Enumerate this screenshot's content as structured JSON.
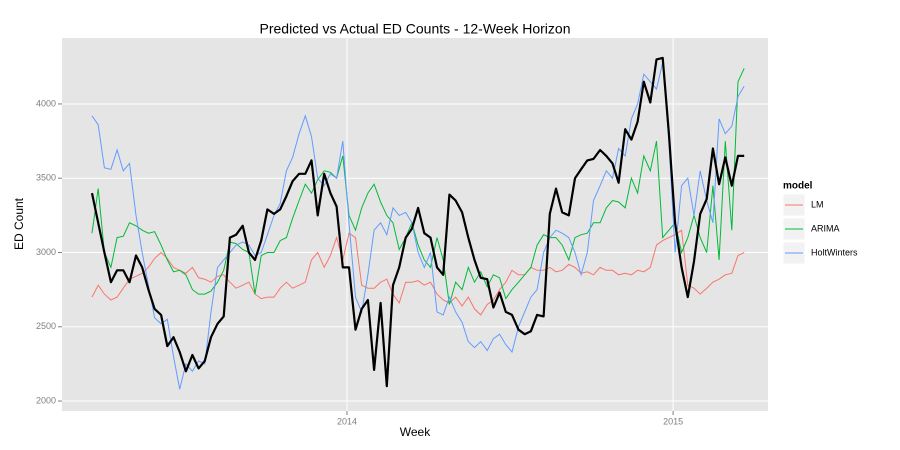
{
  "chart_data": {
    "type": "line",
    "title": "Predicted vs Actual ED Counts - 12-Week Horizon",
    "x_label": "Week",
    "y_label": "ED Count",
    "legend_title": "model",
    "legend": "right",
    "grid": true,
    "xlim": [
      2013.126,
      2015.291
    ],
    "xticks": [
      2014,
      2015
    ],
    "ylim": [
      1933,
      4444
    ],
    "yticks": [
      2000,
      2500,
      3000,
      3500,
      4000
    ],
    "x": [
      2013.218,
      2013.237,
      2013.256,
      2013.276,
      2013.295,
      2013.314,
      2013.333,
      2013.353,
      2013.372,
      2013.391,
      2013.41,
      2013.43,
      2013.449,
      2013.468,
      2013.487,
      2013.506,
      2013.526,
      2013.545,
      2013.564,
      2013.583,
      2013.603,
      2013.622,
      2013.641,
      2013.66,
      2013.68,
      2013.699,
      2013.718,
      2013.737,
      2013.756,
      2013.776,
      2013.795,
      2013.814,
      2013.833,
      2013.853,
      2013.872,
      2013.891,
      2013.91,
      2013.93,
      2013.949,
      2013.968,
      2013.987,
      2014.006,
      2014.026,
      2014.045,
      2014.064,
      2014.083,
      2014.103,
      2014.122,
      2014.141,
      2014.16,
      2014.18,
      2014.199,
      2014.218,
      2014.237,
      2014.256,
      2014.276,
      2014.295,
      2014.314,
      2014.333,
      2014.353,
      2014.372,
      2014.391,
      2014.41,
      2014.43,
      2014.449,
      2014.468,
      2014.487,
      2014.506,
      2014.526,
      2014.545,
      2014.564,
      2014.583,
      2014.603,
      2014.622,
      2014.641,
      2014.66,
      2014.68,
      2014.699,
      2014.718,
      2014.737,
      2014.756,
      2014.776,
      2014.795,
      2014.814,
      2014.833,
      2014.853,
      2014.872,
      2014.891,
      2014.91,
      2014.93,
      2014.949,
      2014.968,
      2014.987,
      2015.006,
      2015.026,
      2015.045,
      2015.064,
      2015.083,
      2015.103,
      2015.122,
      2015.141,
      2015.16,
      2015.18,
      2015.199,
      2015.218
    ],
    "series": [
      {
        "name": "LM",
        "color": "#F8766D",
        "values": [
          2700,
          2780,
          2720,
          2680,
          2700,
          2760,
          2820,
          2840,
          2860,
          2900,
          2960,
          3000,
          2960,
          2900,
          2880,
          2860,
          2900,
          2830,
          2820,
          2800,
          2840,
          2850,
          2800,
          2760,
          2780,
          2800,
          2720,
          2690,
          2700,
          2700,
          2760,
          2800,
          2760,
          2780,
          2800,
          2950,
          3000,
          2900,
          2980,
          3100,
          2950,
          3130,
          3100,
          2780,
          2760,
          2760,
          2800,
          2820,
          2720,
          2660,
          2800,
          2800,
          2810,
          2780,
          2800,
          2720,
          2680,
          2660,
          2700,
          2640,
          2700,
          2620,
          2580,
          2650,
          2680,
          2750,
          2800,
          2880,
          2850,
          2850,
          2900,
          2880,
          2880,
          2900,
          2870,
          2880,
          2920,
          2900,
          2860,
          2870,
          2850,
          2900,
          2880,
          2880,
          2850,
          2860,
          2850,
          2880,
          2870,
          2900,
          3050,
          3080,
          3100,
          3120,
          3150,
          2780,
          2760,
          2720,
          2760,
          2800,
          2820,
          2850,
          2860,
          2980,
          3000
        ]
      },
      {
        "name": "ARIMA",
        "color": "#00BA38",
        "values": [
          3130,
          3430,
          3000,
          2900,
          3100,
          3110,
          3200,
          3180,
          3150,
          3130,
          3140,
          3050,
          2950,
          2870,
          2880,
          2850,
          2750,
          2720,
          2720,
          2740,
          2800,
          2880,
          3070,
          3060,
          3020,
          3000,
          2720,
          2980,
          3000,
          3000,
          3080,
          3100,
          3230,
          3350,
          3460,
          3400,
          3490,
          3550,
          3540,
          3500,
          3650,
          3250,
          3150,
          3300,
          3400,
          3460,
          3340,
          3250,
          3200,
          3020,
          3100,
          3200,
          3050,
          2950,
          2900,
          3100,
          2950,
          2650,
          2800,
          2750,
          2900,
          2800,
          2870,
          2770,
          2850,
          2830,
          2690,
          2750,
          2800,
          2850,
          2900,
          3050,
          3120,
          3100,
          3100,
          3050,
          2950,
          3100,
          3120,
          3130,
          3200,
          3200,
          3300,
          3350,
          3340,
          3300,
          3500,
          3400,
          3650,
          3550,
          3750,
          3100,
          3150,
          3200,
          3000,
          3100,
          3250,
          3100,
          3000,
          3450,
          2950,
          3750,
          3150,
          4150,
          4240
        ]
      },
      {
        "name": "HoltWinters",
        "color": "#619CFF",
        "values": [
          3920,
          3860,
          3570,
          3560,
          3690,
          3550,
          3600,
          3250,
          3000,
          2780,
          2560,
          2520,
          2550,
          2300,
          2080,
          2250,
          2200,
          2270,
          2250,
          2600,
          2900,
          2950,
          3000,
          3050,
          3070,
          3050,
          2980,
          3000,
          3120,
          3250,
          3330,
          3550,
          3640,
          3800,
          3920,
          3780,
          3500,
          3450,
          3530,
          3500,
          3750,
          3200,
          2700,
          2600,
          2850,
          3150,
          3200,
          3120,
          3300,
          3250,
          3270,
          3200,
          3000,
          2900,
          3000,
          2600,
          2580,
          2700,
          2600,
          2530,
          2400,
          2360,
          2400,
          2340,
          2420,
          2450,
          2380,
          2330,
          2500,
          2600,
          2700,
          2750,
          3000,
          3100,
          3150,
          3130,
          3100,
          3000,
          2850,
          3000,
          3350,
          3450,
          3550,
          3500,
          3700,
          3650,
          3900,
          4000,
          4200,
          4150,
          4100,
          4280,
          3750,
          3000,
          3450,
          3500,
          3250,
          3550,
          3350,
          3200,
          3900,
          3800,
          3850,
          4050,
          4120
        ]
      }
    ],
    "actual": {
      "color": "#000000",
      "values": [
        3400,
        3200,
        3000,
        2800,
        2880,
        2880,
        2800,
        2980,
        2900,
        2750,
        2620,
        2580,
        2370,
        2430,
        2330,
        2200,
        2310,
        2220,
        2270,
        2430,
        2520,
        2570,
        3100,
        3120,
        3180,
        3000,
        2950,
        3080,
        3290,
        3260,
        3290,
        3380,
        3480,
        3530,
        3530,
        3620,
        3250,
        3530,
        3400,
        3310,
        2900,
        2900,
        2480,
        2620,
        2680,
        2210,
        2660,
        2100,
        2780,
        2900,
        3100,
        3160,
        3300,
        3130,
        3100,
        2900,
        2850,
        3390,
        3350,
        3270,
        3100,
        2950,
        2830,
        2820,
        2630,
        2730,
        2600,
        2580,
        2480,
        2450,
        2470,
        2580,
        2570,
        3260,
        3430,
        3270,
        3250,
        3500,
        3560,
        3620,
        3630,
        3690,
        3650,
        3600,
        3470,
        3830,
        3760,
        3880,
        4150,
        4010,
        4300,
        4310,
        3800,
        3200,
        2900,
        2700,
        2940,
        3260,
        3360,
        3700,
        3460,
        3640,
        3450,
        3650,
        3650
      ]
    }
  }
}
